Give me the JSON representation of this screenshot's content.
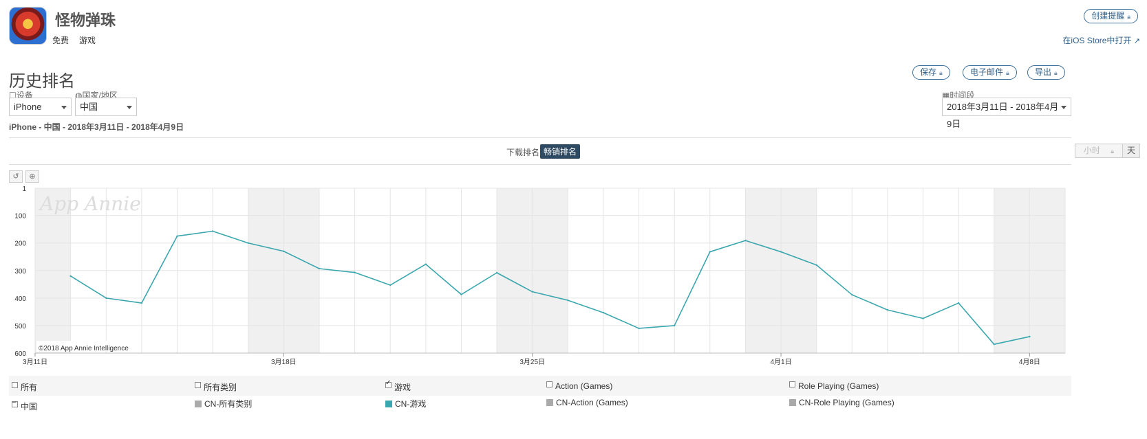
{
  "app": {
    "name": "怪物弹珠",
    "price": "免费",
    "category": "游戏",
    "create_alert_label": "创建提醒",
    "open_store_label": "在iOS Store中打开"
  },
  "section": {
    "title": "历史排名",
    "save_label": "保存",
    "email_label": "电子邮件",
    "export_label": "导出"
  },
  "filters": {
    "device_label": "设备",
    "device_value": "iPhone",
    "country_label": "国家/地区",
    "country_value": "中国",
    "period_label": "时间段",
    "period_value": "2018年3月11日 - 2018年4月9日"
  },
  "summary": "iPhone - 中国 - 2018年3月11日 - 2018年4月9日",
  "tabs": {
    "downloads": "下载排名",
    "grossing": "畅销排名"
  },
  "granularity": {
    "hourly": "小时",
    "daily": "天"
  },
  "tools": {
    "reset_icon": "undo-icon",
    "zoom_icon": "zoom-in-icon"
  },
  "colors": {
    "accent": "#2d5f8a",
    "series": "#3aa6ae",
    "tab_active": "#2e4a62"
  },
  "chart_data": {
    "type": "line",
    "watermark": "App Annie",
    "copyright": "©2018 App Annie Intelligence",
    "x_labels": [
      {
        "index": 0,
        "label": "3月11日"
      },
      {
        "index": 7,
        "label": "3月18日"
      },
      {
        "index": 14,
        "label": "3月25日"
      },
      {
        "index": 21,
        "label": "4月1日"
      },
      {
        "index": 28,
        "label": "4月8日"
      }
    ],
    "x_count": 30,
    "y_ticks": [
      1,
      100,
      200,
      300,
      400,
      500,
      600
    ],
    "ylim": [
      1,
      600
    ],
    "y_reversed": true,
    "weekend_bands": [
      [
        0,
        1
      ],
      [
        6,
        8
      ],
      [
        13,
        15
      ],
      [
        20,
        22
      ],
      [
        27,
        29
      ]
    ],
    "series": [
      {
        "name": "CN-游戏",
        "x_start": 1,
        "values": [
          320,
          400,
          418,
          175,
          157,
          200,
          230,
          293,
          307,
          353,
          277,
          387,
          308,
          377,
          408,
          453,
          510,
          500,
          232,
          191,
          232,
          280,
          388,
          443,
          474,
          418,
          568,
          540
        ]
      }
    ]
  },
  "legend": {
    "row1": [
      "所有",
      "所有类别",
      "游戏",
      "Action (Games)",
      "Role Playing (Games)"
    ],
    "row2": [
      "中国",
      "CN-所有类别",
      "CN-游戏",
      "CN-Action (Games)",
      "CN-Role Playing (Games)"
    ]
  }
}
